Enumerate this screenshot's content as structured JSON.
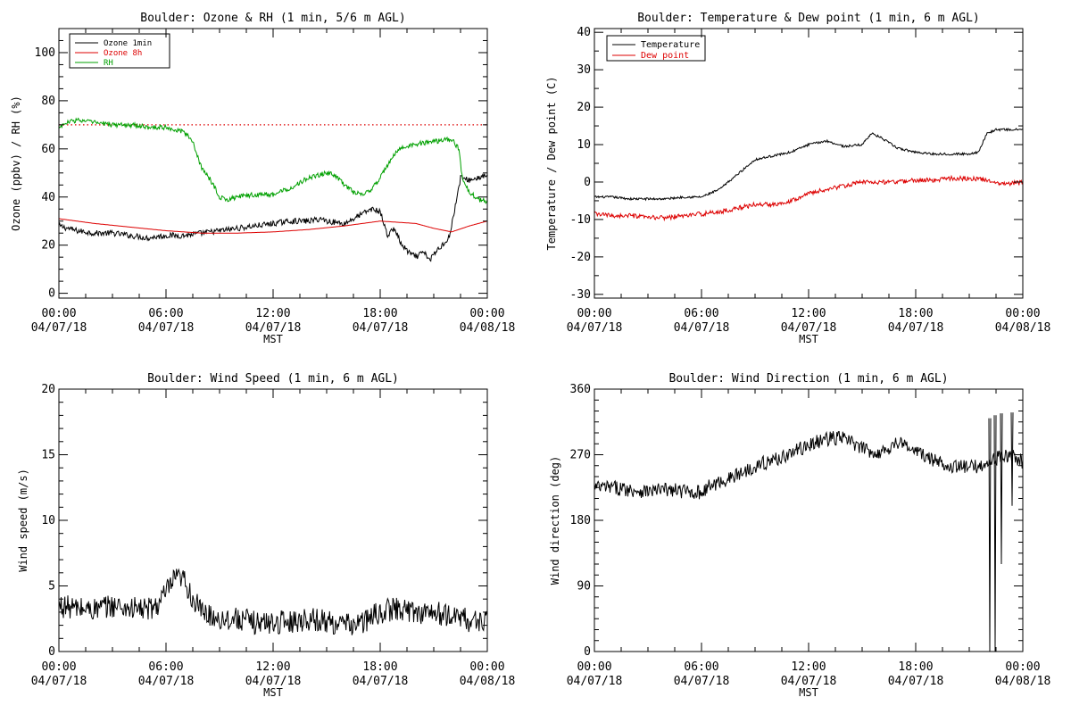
{
  "chart_data": [
    {
      "type": "line",
      "title": "Boulder: Ozone & RH (1 min, 5/6 m AGL)",
      "xlabel": "MST",
      "ylabel": "Ozone (ppbv) / RH (%)",
      "x_ticks": [
        {
          "time": "00:00",
          "date": "04/07/18"
        },
        {
          "time": "06:00",
          "date": "04/07/18"
        },
        {
          "time": "12:00",
          "date": "04/07/18"
        },
        {
          "time": "18:00",
          "date": "04/07/18"
        },
        {
          "time": "00:00",
          "date": "04/08/18"
        }
      ],
      "xlim": [
        0,
        24
      ],
      "ylim": [
        -2,
        110
      ],
      "y_ticks": [
        "0",
        "20",
        "40",
        "60",
        "80",
        "100"
      ],
      "legend": "top-left",
      "hline": {
        "y": 70,
        "color": "#dd0000",
        "style": "dotted"
      },
      "series": [
        {
          "name": "Ozone 1min",
          "color": "#000000",
          "noise": 1.2,
          "x": [
            0,
            1,
            2,
            3,
            4,
            5,
            6,
            7,
            8,
            9,
            10,
            11,
            12,
            13,
            14,
            14.7,
            15,
            16,
            17,
            17.5,
            18,
            18.4,
            18.8,
            19.2,
            19.6,
            20,
            20.4,
            20.8,
            21.2,
            21.6,
            21.9,
            22.2,
            22.5,
            23,
            23.5,
            24
          ],
          "y": [
            28,
            26,
            25,
            25,
            24,
            23,
            24,
            24,
            25,
            26,
            27,
            28,
            29,
            30,
            30,
            31,
            30,
            29,
            33,
            35,
            34,
            24,
            27,
            20,
            17,
            15,
            17,
            14,
            18,
            21,
            24,
            36,
            48,
            47,
            48,
            49
          ]
        },
        {
          "name": "Ozone 8h",
          "color": "#dd0000",
          "noise": 0,
          "x": [
            0,
            2,
            4,
            6,
            8,
            10,
            12,
            14,
            16,
            18,
            20,
            21,
            22,
            23,
            24
          ],
          "y": [
            31,
            29,
            27.5,
            26,
            25,
            25,
            25.5,
            26.5,
            28,
            30,
            29,
            27,
            25.5,
            28,
            30
          ]
        },
        {
          "name": "RH",
          "color": "#00a000",
          "noise": 1.0,
          "x": [
            0,
            0.5,
            1,
            2,
            3,
            4,
            5,
            6,
            7,
            7.5,
            8,
            8.5,
            9,
            9.5,
            10,
            11,
            12,
            13,
            14,
            15,
            15.5,
            16,
            16.5,
            17,
            17.5,
            18,
            18.5,
            19,
            20,
            21,
            22,
            22.4,
            22.6,
            23,
            23.5,
            24
          ],
          "y": [
            69,
            71,
            72,
            71,
            70,
            70,
            69,
            69,
            67,
            63,
            52,
            47,
            40,
            39,
            40,
            41,
            41,
            44,
            48,
            50,
            49,
            45,
            42,
            41,
            43,
            48,
            54,
            60,
            62,
            63,
            64,
            60,
            48,
            42,
            39,
            38
          ]
        }
      ]
    },
    {
      "type": "line",
      "title": "Boulder: Temperature & Dew point (1 min, 6 m AGL)",
      "xlabel": "MST",
      "ylabel": "Temperature / Dew point (C)",
      "x_ticks": [
        {
          "time": "00:00",
          "date": "04/07/18"
        },
        {
          "time": "06:00",
          "date": "04/07/18"
        },
        {
          "time": "12:00",
          "date": "04/07/18"
        },
        {
          "time": "18:00",
          "date": "04/07/18"
        },
        {
          "time": "00:00",
          "date": "04/08/18"
        }
      ],
      "xlim": [
        0,
        24
      ],
      "ylim": [
        -31,
        41
      ],
      "y_ticks": [
        "-30",
        "-20",
        "-10",
        "0",
        "10",
        "20",
        "30",
        "40"
      ],
      "legend": "top-left",
      "series": [
        {
          "name": "Temperature",
          "color": "#000000",
          "noise": 0.3,
          "x": [
            0,
            1,
            2,
            3,
            4,
            5,
            6,
            6.5,
            7,
            8,
            9,
            10,
            11,
            12,
            13,
            14,
            15,
            15.5,
            16,
            17,
            18,
            19,
            20,
            21,
            21.5,
            22,
            22.5,
            23,
            24
          ],
          "y": [
            -4,
            -4,
            -4.5,
            -4.5,
            -4.5,
            -4,
            -4,
            -3,
            -2,
            2,
            6,
            7,
            8,
            10,
            11,
            9.5,
            10,
            13,
            12,
            9,
            8,
            7.5,
            7.5,
            7.5,
            8,
            13,
            14,
            14,
            14
          ]
        },
        {
          "name": "Dew point",
          "color": "#dd0000",
          "noise": 0.6,
          "x": [
            0,
            1,
            2,
            3,
            4,
            5,
            6,
            7,
            8,
            9,
            10,
            11,
            12,
            13,
            14,
            15,
            16,
            17,
            18,
            19,
            20,
            21,
            22,
            23,
            24
          ],
          "y": [
            -8.5,
            -9,
            -9,
            -9.5,
            -9.5,
            -9,
            -8.5,
            -8,
            -7,
            -6,
            -6,
            -5,
            -3,
            -2,
            -1,
            0,
            0,
            0,
            0.5,
            0.5,
            1,
            1,
            0.5,
            -0.5,
            0
          ]
        }
      ]
    },
    {
      "type": "line",
      "title": "Boulder: Wind Speed (1 min, 6 m AGL)",
      "xlabel": "MST",
      "ylabel": "Wind speed (m/s)",
      "x_ticks": [
        {
          "time": "00:00",
          "date": "04/07/18"
        },
        {
          "time": "06:00",
          "date": "04/07/18"
        },
        {
          "time": "12:00",
          "date": "04/07/18"
        },
        {
          "time": "18:00",
          "date": "04/07/18"
        },
        {
          "time": "00:00",
          "date": "04/08/18"
        }
      ],
      "xlim": [
        0,
        24
      ],
      "ylim": [
        0,
        20
      ],
      "y_ticks": [
        "0",
        "5",
        "10",
        "15",
        "20"
      ],
      "series": [
        {
          "name": "",
          "color": "#000000",
          "noise": 0.9,
          "x": [
            0,
            1,
            2,
            3,
            4,
            5,
            5.5,
            6,
            6.5,
            7,
            7.5,
            8,
            9,
            10,
            11,
            12,
            13,
            14,
            15,
            16,
            17,
            18,
            19,
            20,
            21,
            22,
            22.5,
            23,
            24
          ],
          "y": [
            3.5,
            3.3,
            3.2,
            3.5,
            3.3,
            3.2,
            3.5,
            4.5,
            5.5,
            5.5,
            4,
            3,
            2.5,
            2.5,
            2.2,
            2.2,
            2.3,
            2.5,
            2.3,
            2,
            2.2,
            3,
            3.3,
            3,
            3,
            2.6,
            2.8,
            2.2,
            2.5
          ]
        }
      ]
    },
    {
      "type": "line",
      "title": "Boulder: Wind Direction (1 min, 6 m AGL)",
      "xlabel": "MST",
      "ylabel": "Wind direction (deg)",
      "x_ticks": [
        {
          "time": "00:00",
          "date": "04/07/18"
        },
        {
          "time": "06:00",
          "date": "04/07/18"
        },
        {
          "time": "12:00",
          "date": "04/07/18"
        },
        {
          "time": "18:00",
          "date": "04/07/18"
        },
        {
          "time": "00:00",
          "date": "04/08/18"
        }
      ],
      "xlim": [
        0,
        24
      ],
      "ylim": [
        0,
        360
      ],
      "y_ticks": [
        "0",
        "90",
        "180",
        "270",
        "360"
      ],
      "series": [
        {
          "name": "",
          "color": "#000000",
          "noise": 10,
          "x": [
            0,
            1,
            2,
            3,
            4,
            5,
            6,
            6.3,
            7,
            8,
            9,
            10,
            11,
            12,
            13,
            14,
            15,
            16,
            17,
            18,
            19,
            20,
            21,
            21.5,
            22,
            22.5,
            23,
            23.5,
            24
          ],
          "y": [
            225,
            225,
            222,
            220,
            222,
            220,
            218,
            225,
            232,
            242,
            255,
            262,
            272,
            283,
            292,
            293,
            278,
            272,
            288,
            275,
            262,
            255,
            252,
            255,
            258,
            265,
            268,
            268,
            260
          ]
        }
      ],
      "spikes": [
        {
          "x": 22.15,
          "y": 0
        },
        {
          "x": 22.45,
          "y": 0
        },
        {
          "x": 22.8,
          "y": 120
        },
        {
          "x": 23.4,
          "y": 200
        }
      ]
    }
  ]
}
